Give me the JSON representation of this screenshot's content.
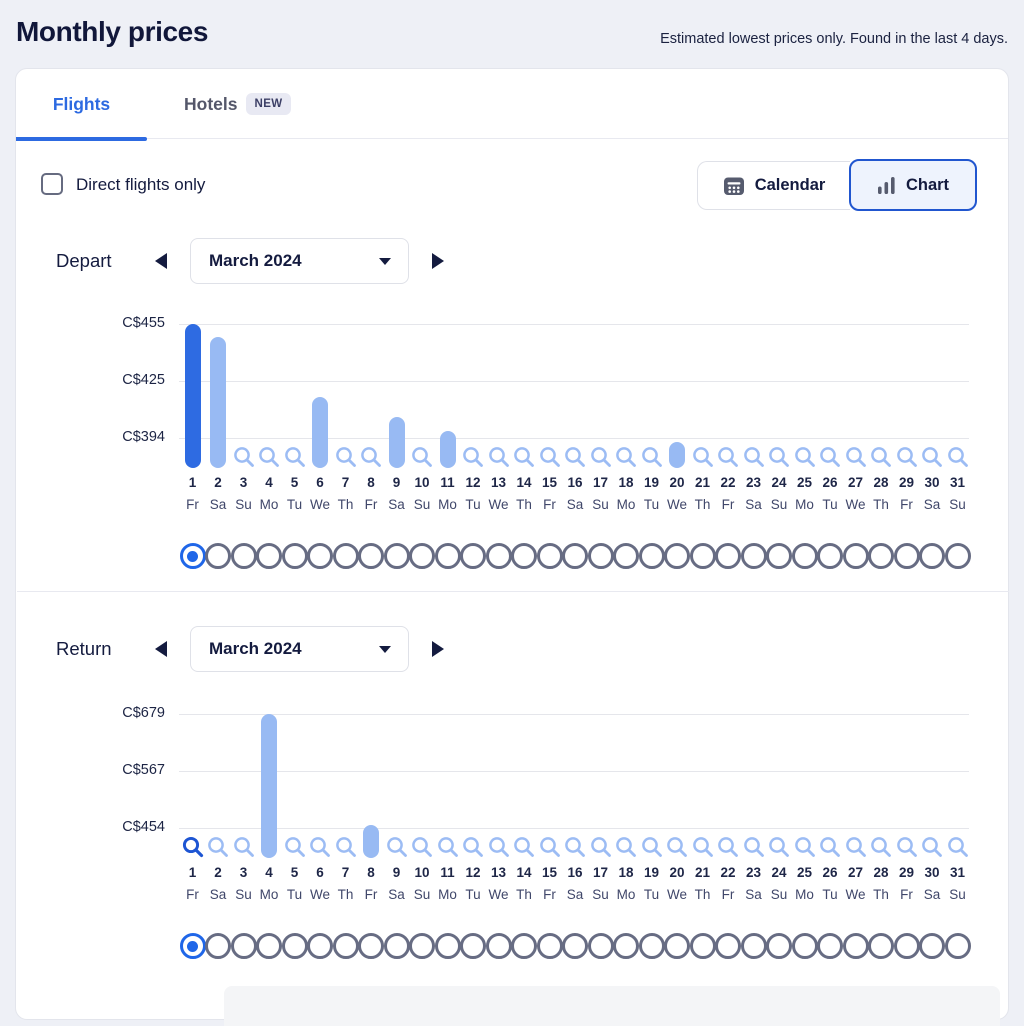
{
  "page": {
    "title": "Monthly prices",
    "subtitle": "Estimated lowest prices only. Found in the last 4 days."
  },
  "tabs": {
    "flights": "Flights",
    "hotels": "Hotels",
    "hotels_badge": "NEW",
    "active_tab": "Flights"
  },
  "controls": {
    "direct_flights_label": "Direct flights only",
    "direct_flights_checked": false,
    "calendar_button": "Calendar",
    "chart_button": "Chart",
    "active_view": "Chart"
  },
  "sections": {
    "depart": {
      "label": "Depart",
      "month": "March 2024"
    },
    "return": {
      "label": "Return",
      "month": "March 2024"
    }
  },
  "colors": {
    "accent_blue": "#2d6ae1",
    "selected_bar_blue": "#2e6be2",
    "bar_light_blue": "#98baf3",
    "magnifier_light_blue": "#9cbcf4",
    "magnifier_selected_blue": "#1d55d3",
    "navy_text": "#141b3f",
    "page_background": "#eef0f6",
    "gridline": "#e5e6eb"
  },
  "chart_data": [
    {
      "type": "bar",
      "section": "Depart",
      "month": "March 2024",
      "currency": "C$",
      "y_ticks": [
        {
          "label": "C$455",
          "value": 455
        },
        {
          "label": "C$425",
          "value": 425
        },
        {
          "label": "C$394",
          "value": 394
        }
      ],
      "axis": {
        "max": 455,
        "min": 394
      },
      "days": [
        1,
        2,
        3,
        4,
        5,
        6,
        7,
        8,
        9,
        10,
        11,
        12,
        13,
        14,
        15,
        16,
        17,
        18,
        19,
        20,
        21,
        22,
        23,
        24,
        25,
        26,
        27,
        28,
        29,
        30,
        31
      ],
      "weekdays": [
        "Fr",
        "Sa",
        "Su",
        "Mo",
        "Tu",
        "We",
        "Th",
        "Fr",
        "Sa",
        "Su",
        "Mo",
        "Tu",
        "We",
        "Th",
        "Fr",
        "Sa",
        "Su",
        "Mo",
        "Tu",
        "We",
        "Th",
        "Fr",
        "Sa",
        "Su",
        "Mo",
        "Tu",
        "We",
        "Th",
        "Fr",
        "Sa",
        "Su"
      ],
      "bars": [
        {
          "day": 1,
          "price": 455,
          "selected": true
        },
        {
          "day": 2,
          "price": 448
        },
        {
          "day": 6,
          "price": 416
        },
        {
          "day": 9,
          "price": 405
        },
        {
          "day": 11,
          "price": 398
        },
        {
          "day": 20,
          "price": 392
        }
      ],
      "no_price_days": [
        3,
        4,
        5,
        7,
        8,
        10,
        12,
        13,
        14,
        15,
        16,
        17,
        18,
        19,
        21,
        22,
        23,
        24,
        25,
        26,
        27,
        28,
        29,
        30,
        31
      ],
      "search_selected_day": null,
      "selected_radio_day": 1
    },
    {
      "type": "bar",
      "section": "Return",
      "month": "March 2024",
      "currency": "C$",
      "y_ticks": [
        {
          "label": "C$679",
          "value": 679
        },
        {
          "label": "C$567",
          "value": 567
        },
        {
          "label": "C$454",
          "value": 454
        }
      ],
      "axis": {
        "max": 679,
        "min": 454
      },
      "days": [
        1,
        2,
        3,
        4,
        5,
        6,
        7,
        8,
        9,
        10,
        11,
        12,
        13,
        14,
        15,
        16,
        17,
        18,
        19,
        20,
        21,
        22,
        23,
        24,
        25,
        26,
        27,
        28,
        29,
        30,
        31
      ],
      "weekdays": [
        "Fr",
        "Sa",
        "Su",
        "Mo",
        "Tu",
        "We",
        "Th",
        "Fr",
        "Sa",
        "Su",
        "Mo",
        "Tu",
        "We",
        "Th",
        "Fr",
        "Sa",
        "Su",
        "Mo",
        "Tu",
        "We",
        "Th",
        "Fr",
        "Sa",
        "Su",
        "Mo",
        "Tu",
        "We",
        "Th",
        "Fr",
        "Sa",
        "Su"
      ],
      "bars": [
        {
          "day": 4,
          "price": 679
        },
        {
          "day": 8,
          "price": 459
        }
      ],
      "no_price_days": [
        1,
        2,
        3,
        5,
        6,
        7,
        9,
        10,
        11,
        12,
        13,
        14,
        15,
        16,
        17,
        18,
        19,
        20,
        21,
        22,
        23,
        24,
        25,
        26,
        27,
        28,
        29,
        30,
        31
      ],
      "search_selected_day": 1,
      "selected_radio_day": 1
    }
  ]
}
